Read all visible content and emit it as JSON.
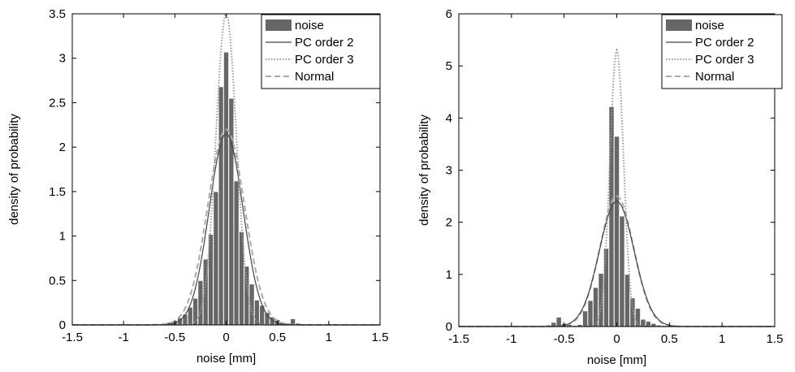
{
  "chart_data": [
    {
      "type": "bar",
      "xlabel": "noise [mm]",
      "ylabel": "density of probability",
      "xlim": [
        -1.5,
        1.5
      ],
      "ylim": [
        0,
        3.5
      ],
      "xticks": [
        -1.5,
        -1,
        -0.5,
        0,
        0.5,
        1,
        1.5
      ],
      "xtick_labels": [
        "-1.5",
        "-1",
        "-0.5",
        "0",
        "0.5",
        "1",
        "1.5"
      ],
      "yticks": [
        0,
        0.5,
        1,
        1.5,
        2,
        2.5,
        3,
        3.5
      ],
      "ytick_labels": [
        "0",
        "0.5",
        "1",
        "1.5",
        "2",
        "2.5",
        "3",
        "3.5"
      ],
      "legend_position": "top-right",
      "legend": [
        {
          "label": "noise",
          "style": "bar",
          "color": "#666666"
        },
        {
          "label": "PC order 2",
          "style": "solid",
          "color": "#444444"
        },
        {
          "label": "PC order 3",
          "style": "dotted",
          "color": "#999999"
        },
        {
          "label": "Normal",
          "style": "dashed",
          "color": "#aaaaaa"
        }
      ],
      "bar_width": 0.05,
      "bin_centers": [
        -0.7,
        -0.65,
        -0.6,
        -0.55,
        -0.5,
        -0.45,
        -0.4,
        -0.35,
        -0.3,
        -0.25,
        -0.2,
        -0.15,
        -0.1,
        -0.05,
        0,
        0.05,
        0.1,
        0.15,
        0.2,
        0.25,
        0.3,
        0.35,
        0.4,
        0.45,
        0.5,
        0.55,
        0.6,
        0.65,
        0.7,
        0.75,
        0.8
      ],
      "values": [
        0.01,
        0.01,
        0.02,
        0.03,
        0.05,
        0.08,
        0.12,
        0.2,
        0.3,
        0.5,
        0.74,
        1.02,
        1.5,
        2.68,
        3.07,
        2.55,
        1.62,
        1.05,
        0.66,
        0.46,
        0.28,
        0.22,
        0.14,
        0.09,
        0.06,
        0.03,
        0.02,
        0.07,
        0.02,
        0.01,
        0.01
      ],
      "curves": {
        "pc2": {
          "label": "PC order 2",
          "peak": 2.15,
          "sigma": 0.165
        },
        "pc3": {
          "label": "PC order 3",
          "peak": 3.5,
          "sigma": 0.1
        },
        "normal": {
          "label": "Normal",
          "peak": 2.2,
          "sigma": 0.18
        }
      },
      "grid": false
    },
    {
      "type": "bar",
      "xlabel": "noise [mm]",
      "ylabel": "density of probability",
      "xlim": [
        -1.5,
        1.5
      ],
      "ylim": [
        0,
        6
      ],
      "xticks": [
        -1.5,
        -1,
        -0.5,
        0,
        0.5,
        1,
        1.5
      ],
      "xtick_labels": [
        "-1.5",
        "-1",
        "-0.5",
        "0",
        "0.5",
        "1",
        "1.5"
      ],
      "yticks": [
        0,
        1,
        2,
        3,
        4,
        5,
        6
      ],
      "ytick_labels": [
        "0",
        "1",
        "2",
        "3",
        "4",
        "5",
        "6"
      ],
      "legend_position": "top-right",
      "legend": [
        {
          "label": "noise",
          "style": "bar",
          "color": "#666666"
        },
        {
          "label": "PC order 2",
          "style": "solid",
          "color": "#444444"
        },
        {
          "label": "PC order 3",
          "style": "dotted",
          "color": "#999999"
        },
        {
          "label": "Normal",
          "style": "dashed",
          "color": "#aaaaaa"
        }
      ],
      "bar_width": 0.05,
      "bin_centers": [
        -0.7,
        -0.65,
        -0.6,
        -0.55,
        -0.5,
        -0.45,
        -0.4,
        -0.35,
        -0.3,
        -0.25,
        -0.2,
        -0.15,
        -0.1,
        -0.05,
        0,
        0.05,
        0.1,
        0.15,
        0.2,
        0.25,
        0.3,
        0.35,
        0.4,
        0.45,
        0.5,
        0.55,
        0.6,
        0.65,
        0.7,
        0.75,
        0.8
      ],
      "values": [
        0.02,
        0.03,
        0.08,
        0.18,
        0.06,
        0.04,
        0.02,
        0.04,
        0.3,
        0.5,
        0.75,
        1.02,
        1.5,
        4.22,
        3.65,
        2.12,
        1.0,
        0.55,
        0.35,
        0.14,
        0.1,
        0.06,
        0.03,
        0.02,
        0.02,
        0.01,
        0.01,
        0.01,
        0.01,
        0.01,
        0.01
      ],
      "curves": {
        "pc2": {
          "label": "PC order 2",
          "peak": 2.4,
          "sigma": 0.165
        },
        "pc3": {
          "label": "PC order 3",
          "peak": 5.3,
          "sigma": 0.065
        },
        "normal": {
          "label": "Normal",
          "peak": 2.5,
          "sigma": 0.16
        }
      },
      "grid": false
    }
  ]
}
